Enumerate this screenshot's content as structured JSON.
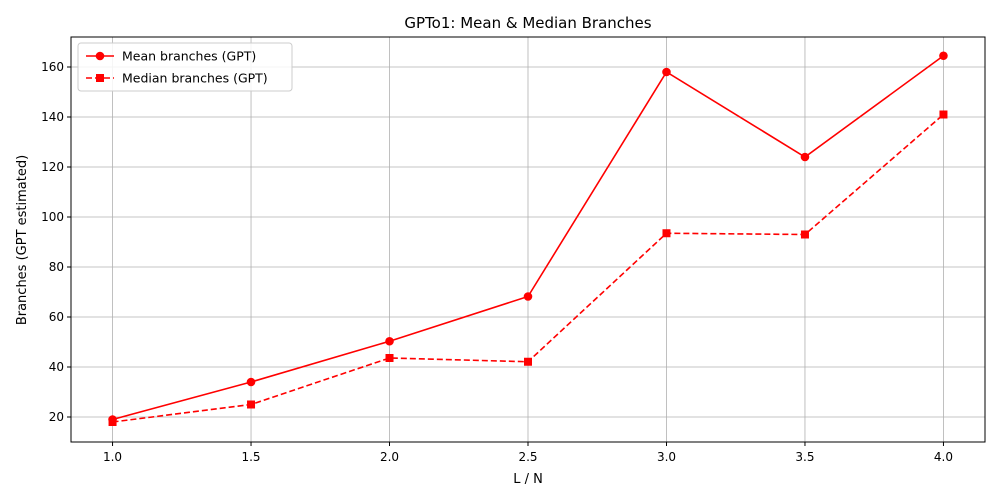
{
  "chart_data": {
    "type": "line",
    "title": "GPTo1: Mean & Median Branches",
    "xlabel": "L / N",
    "ylabel": "Branches (GPT estimated)",
    "x": [
      1.0,
      1.5,
      2.0,
      2.5,
      3.0,
      3.5,
      4.0
    ],
    "xlim": [
      0.85,
      4.15
    ],
    "ylim": [
      10,
      172
    ],
    "x_ticks": [
      "1.0",
      "1.5",
      "2.0",
      "2.5",
      "3.0",
      "3.5",
      "4.0"
    ],
    "y_ticks": [
      "20",
      "40",
      "60",
      "80",
      "100",
      "120",
      "140",
      "160"
    ],
    "grid": true,
    "legend_position": "top-left",
    "series": [
      {
        "name": "Mean branches (GPT)",
        "values": [
          19,
          34,
          50.3,
          68.2,
          158,
          124,
          164.5
        ],
        "color": "#ff0000",
        "line_style": "solid",
        "marker": "circle"
      },
      {
        "name": "Median branches (GPT)",
        "values": [
          18,
          25,
          43.6,
          42.1,
          93.5,
          93,
          141
        ],
        "color": "#ff0000",
        "line_style": "dashed",
        "marker": "square"
      }
    ]
  }
}
